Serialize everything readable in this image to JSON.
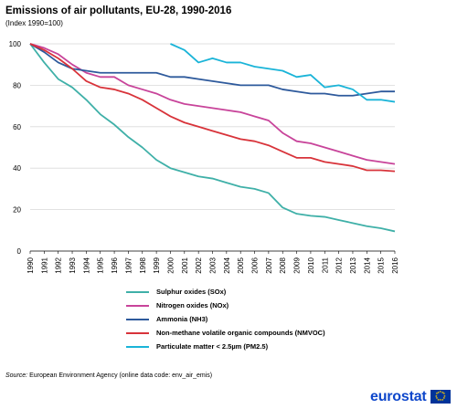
{
  "title": "Emissions  of air pollutants, EU-28, 1990-2016",
  "subtitle": "(Index 1990=100)",
  "source": {
    "label": "Source:",
    "text": " European Environment Agency (online data code: env_air_emis)"
  },
  "brand": "eurostat",
  "chart_data": {
    "type": "line",
    "title": "Emissions  of air pollutants, EU-28, 1990-2016",
    "subtitle": "(Index 1990=100)",
    "xlabel": "",
    "ylabel": "",
    "ylim": [
      0,
      100
    ],
    "yticks": [
      0,
      20,
      40,
      60,
      80,
      100
    ],
    "grid": true,
    "legend_position": "bottom",
    "x": [
      "1990",
      "1991",
      "1992",
      "1993",
      "1994",
      "1995",
      "1996",
      "1997",
      "1998",
      "1999",
      "2000",
      "2001",
      "2002",
      "2003",
      "2004",
      "2005",
      "2006",
      "2007",
      "2008",
      "2009",
      "2010",
      "2011",
      "2012",
      "2013",
      "2014",
      "2015",
      "2016"
    ],
    "series": [
      {
        "name": "Sulphur oxides (SOx)",
        "color": "#3fb0a8",
        "values": [
          100,
          91,
          83,
          79,
          73,
          66,
          61,
          55,
          50,
          44,
          40,
          38,
          36,
          35,
          33,
          31,
          30,
          28,
          21,
          18,
          17,
          16.5,
          15,
          13.5,
          12,
          11,
          9.5
        ]
      },
      {
        "name": "Nitrogen oxides (NOx)",
        "color": "#c8449a",
        "values": [
          100,
          98,
          95,
          90,
          86,
          84,
          84,
          80,
          78,
          76,
          73,
          71,
          70,
          69,
          68,
          67,
          65,
          63,
          57,
          53,
          52,
          50,
          48,
          46,
          44,
          43,
          42
        ]
      },
      {
        "name": "Ammonia (NH3)",
        "color": "#2e5a9c",
        "values": [
          100,
          96,
          91,
          88,
          87,
          86,
          86,
          86,
          86,
          86,
          84,
          84,
          83,
          82,
          81,
          80,
          80,
          80,
          78,
          77,
          76,
          76,
          75,
          75,
          76,
          77,
          77
        ]
      },
      {
        "name": "Non-methane volatile organic compounds (NMVOC)",
        "color": "#d8333a",
        "values": [
          100,
          97,
          93,
          88,
          82,
          79,
          78,
          76,
          73,
          69,
          65,
          62,
          60,
          58,
          56,
          54,
          53,
          51,
          48,
          45,
          45,
          43,
          42,
          41,
          39,
          39,
          38.5
        ]
      },
      {
        "name": "Particulate matter < 2.5µm (PM2.5)",
        "color": "#1ab4d8",
        "values": [
          null,
          null,
          null,
          null,
          null,
          null,
          null,
          null,
          null,
          null,
          100,
          97,
          91,
          93,
          91,
          91,
          89,
          88,
          87,
          84,
          85,
          79,
          80,
          78,
          73,
          73,
          72
        ]
      }
    ]
  }
}
